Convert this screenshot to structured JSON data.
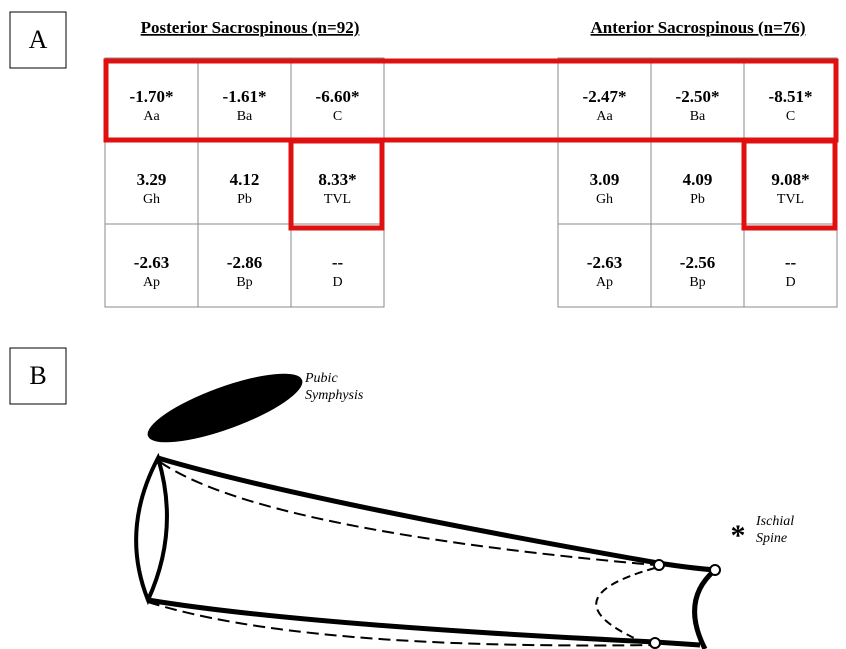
{
  "panel_a": {
    "label": "A",
    "tables": [
      {
        "title": "Posterior Sacrospinous (n=92)",
        "rows": [
          [
            {
              "value": "-1.70*",
              "label": "Aa"
            },
            {
              "value": "-1.61*",
              "label": "Ba"
            },
            {
              "value": "-6.60*",
              "label": "C"
            }
          ],
          [
            {
              "value": "3.29",
              "label": "Gh"
            },
            {
              "value": "4.12",
              "label": "Pb"
            },
            {
              "value": "8.33*",
              "label": "TVL"
            }
          ],
          [
            {
              "value": "-2.63",
              "label": "Ap"
            },
            {
              "value": "-2.86",
              "label": "Bp"
            },
            {
              "value": "--",
              "label": "D"
            }
          ]
        ]
      },
      {
        "title": "Anterior Sacrospinous (n=76)",
        "rows": [
          [
            {
              "value": "-2.47*",
              "label": "Aa"
            },
            {
              "value": "-2.50*",
              "label": "Ba"
            },
            {
              "value": "-8.51*",
              "label": "C"
            }
          ],
          [
            {
              "value": "3.09",
              "label": "Gh"
            },
            {
              "value": "4.09",
              "label": "Pb"
            },
            {
              "value": "9.08*",
              "label": "TVL"
            }
          ],
          [
            {
              "value": "-2.63",
              "label": "Ap"
            },
            {
              "value": "-2.56",
              "label": "Bp"
            },
            {
              "value": "--",
              "label": "D"
            }
          ]
        ]
      }
    ]
  },
  "panel_b": {
    "label": "B",
    "annotations": [
      {
        "lines": [
          "Pubic",
          "Symphysis"
        ]
      },
      {
        "lines": [
          "Ischial",
          "Spine"
        ]
      }
    ]
  }
}
